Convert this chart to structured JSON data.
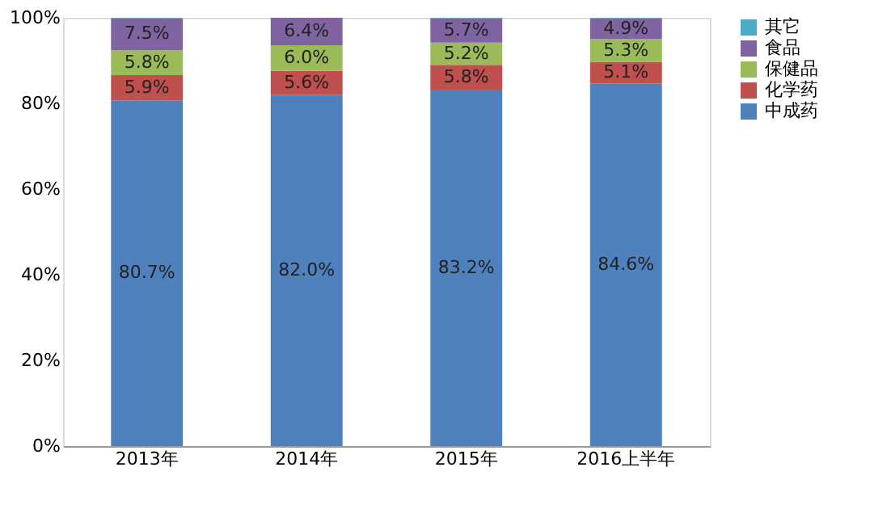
{
  "chart_data": {
    "type": "bar",
    "stacked": true,
    "categories": [
      "2013年",
      "2014年",
      "2015年",
      "2016上半年"
    ],
    "series": [
      {
        "name": "中成药",
        "color": "#4f81bd",
        "values": [
          80.7,
          82.0,
          83.2,
          84.6
        ],
        "value_labels": [
          "80.7%",
          "82.0%",
          "83.2%",
          "84.6%"
        ]
      },
      {
        "name": "化学药",
        "color": "#c0504d",
        "values": [
          5.9,
          5.6,
          5.8,
          5.1
        ],
        "value_labels": [
          "5.9%",
          "5.6%",
          "5.8%",
          "5.1%"
        ]
      },
      {
        "name": "保健品",
        "color": "#9bbb59",
        "values": [
          5.8,
          6.0,
          5.2,
          5.3
        ],
        "value_labels": [
          "5.8%",
          "6.0%",
          "5.2%",
          "5.3%"
        ]
      },
      {
        "name": "食品",
        "color": "#8064a2",
        "values": [
          7.5,
          6.4,
          5.7,
          4.9
        ],
        "value_labels": [
          "7.5%",
          "6.4%",
          "5.7%",
          "4.9%"
        ]
      },
      {
        "name": "其它",
        "color": "#4bacc6",
        "values": [
          0.1,
          0.0,
          0.1,
          0.1
        ],
        "value_labels": [
          null,
          null,
          null,
          null
        ]
      }
    ],
    "ylim": [
      0,
      100
    ],
    "yticks": [
      {
        "value": 0,
        "label": "0%"
      },
      {
        "value": 20,
        "label": "20%"
      },
      {
        "value": 40,
        "label": "40%"
      },
      {
        "value": 60,
        "label": "60%"
      },
      {
        "value": 80,
        "label": "80%"
      },
      {
        "value": 100,
        "label": "100%"
      }
    ],
    "grid": false,
    "legend": "right"
  }
}
